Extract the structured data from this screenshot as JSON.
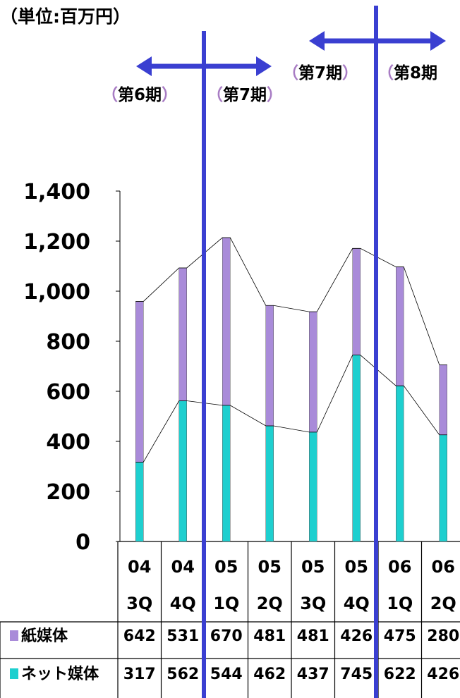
{
  "chart_data": {
    "type": "bar",
    "stacked": true,
    "unit_label": "（単位:百万円）",
    "categories": [
      [
        "04",
        "3Q"
      ],
      [
        "04",
        "4Q"
      ],
      [
        "05",
        "1Q"
      ],
      [
        "05",
        "2Q"
      ],
      [
        "05",
        "3Q"
      ],
      [
        "05",
        "4Q"
      ],
      [
        "06",
        "1Q"
      ],
      [
        "06",
        "2Q"
      ]
    ],
    "series": [
      {
        "name": "ネット媒体",
        "values": [
          317,
          562,
          544,
          462,
          437,
          745,
          622,
          426
        ],
        "color": "#1ecfcf"
      },
      {
        "name": "紙媒体",
        "values": [
          642,
          531,
          670,
          481,
          481,
          426,
          475,
          280
        ],
        "color": "#a98bd9"
      }
    ],
    "yticks": [
      "0",
      "200",
      "400",
      "600",
      "800",
      "1,000",
      "1,200",
      "1,400"
    ],
    "ylim": [
      0,
      1400
    ],
    "legend": "data table",
    "period_annotations": [
      {
        "labels": [
          {
            "open": "（",
            "text": "第6期",
            "close": "）"
          },
          {
            "open": "（",
            "text": "第7期",
            "close": "）"
          }
        ]
      },
      {
        "labels": [
          {
            "open": "（",
            "text": "第7期",
            "close": "）"
          },
          {
            "open": "（",
            "text": "第8期",
            "close": ""
          }
        ]
      }
    ],
    "accent_color": "#3a3fd1"
  }
}
